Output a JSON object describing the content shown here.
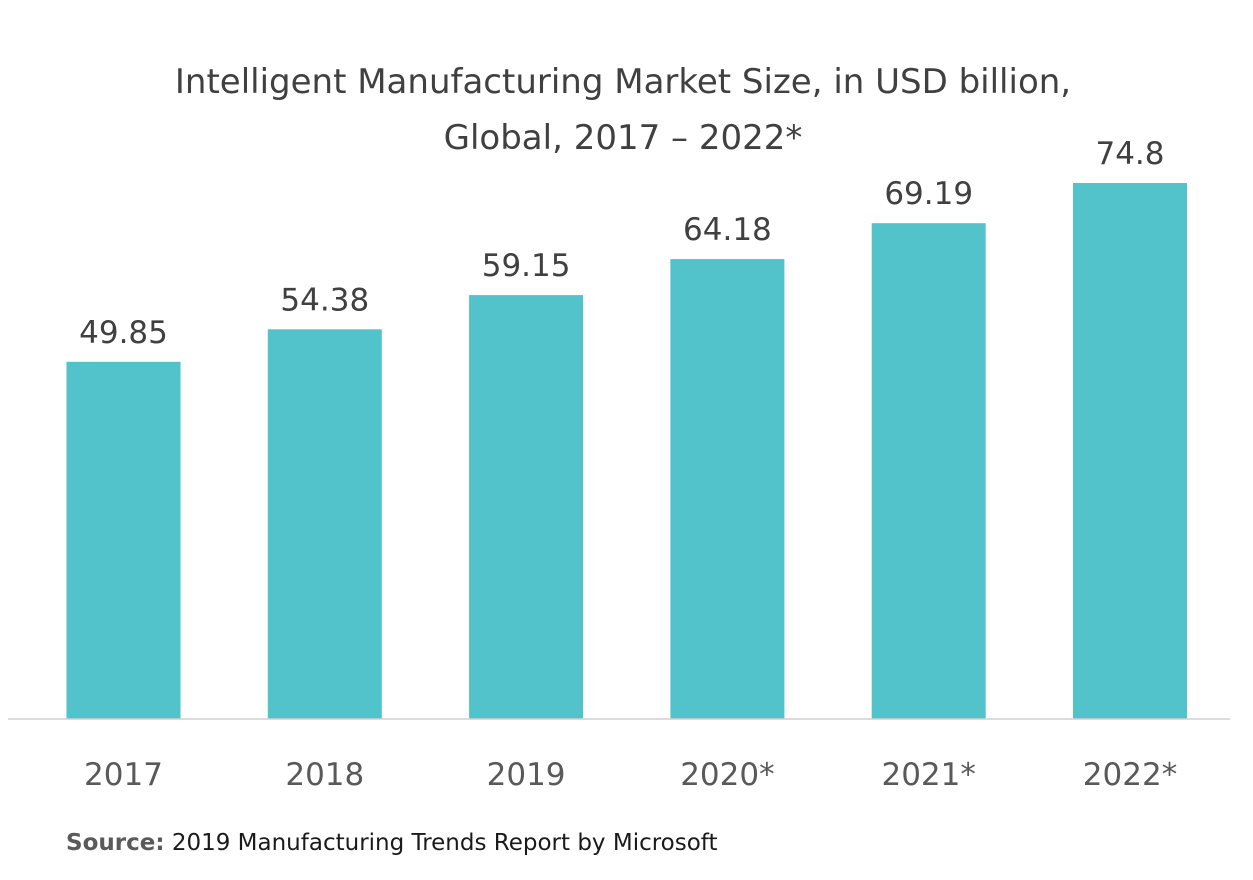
{
  "chart_data": {
    "type": "bar",
    "title_lines": [
      "Intelligent Manufacturing Market Size, in USD billion,",
      "Global, 2017 – 2022*"
    ],
    "categories": [
      "2017",
      "2018",
      "2019",
      "2020*",
      "2021*",
      "2022*"
    ],
    "values": [
      49.85,
      54.38,
      59.15,
      64.18,
      69.19,
      74.8
    ],
    "value_labels": [
      "49.85",
      "54.38",
      "59.15",
      "64.18",
      "69.19",
      "74.8"
    ],
    "xlabel": "",
    "ylabel": "",
    "ylim": [
      0,
      74.8
    ],
    "grid": false,
    "legend": "none",
    "bar_color": "#52C3CA",
    "baseline_color": "#D0D0D0"
  },
  "source": {
    "prefix": "Source:",
    "text": " 2019 Manufacturing Trends Report by Microsoft"
  }
}
